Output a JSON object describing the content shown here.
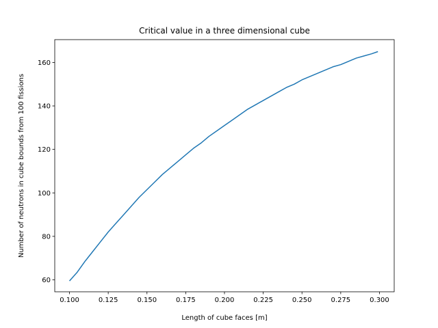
{
  "chart_data": {
    "type": "line",
    "title": "Critical value in a three dimensional cube",
    "xlabel": "Length of cube faces [m]",
    "ylabel": "Number of neutrons in cube bounds from 100 fissions",
    "xlim": [
      0.0905,
      0.3095
    ],
    "ylim": [
      54.5,
      170.5
    ],
    "x_ticks": [
      0.1,
      0.125,
      0.15,
      0.175,
      0.2,
      0.225,
      0.25,
      0.275,
      0.3
    ],
    "x_tick_labels": [
      "0.100",
      "0.125",
      "0.150",
      "0.175",
      "0.200",
      "0.225",
      "0.250",
      "0.275",
      "0.300"
    ],
    "y_ticks": [
      60,
      80,
      100,
      120,
      140,
      160
    ],
    "y_tick_labels": [
      "60",
      "80",
      "100",
      "120",
      "140",
      "160"
    ],
    "grid": false,
    "series": [
      {
        "color": "#1f77b4",
        "x": [
          0.1,
          0.105,
          0.11,
          0.115,
          0.12,
          0.125,
          0.13,
          0.135,
          0.14,
          0.145,
          0.15,
          0.155,
          0.16,
          0.165,
          0.17,
          0.175,
          0.18,
          0.185,
          0.19,
          0.195,
          0.2,
          0.205,
          0.21,
          0.215,
          0.22,
          0.225,
          0.23,
          0.235,
          0.24,
          0.245,
          0.25,
          0.255,
          0.26,
          0.265,
          0.27,
          0.275,
          0.28,
          0.285,
          0.29,
          0.295,
          0.299
        ],
        "y": [
          59.5,
          63.5,
          68.5,
          73.0,
          77.5,
          82.0,
          86.0,
          90.0,
          94.0,
          98.0,
          101.5,
          105.0,
          108.5,
          111.5,
          114.5,
          117.5,
          120.5,
          123.0,
          126.0,
          128.5,
          131.0,
          133.5,
          136.0,
          138.5,
          140.5,
          142.5,
          144.5,
          146.5,
          148.5,
          150.0,
          152.0,
          153.5,
          155.0,
          156.5,
          158.0,
          159.0,
          160.5,
          162.0,
          163.0,
          164.0,
          165.0
        ]
      }
    ]
  }
}
